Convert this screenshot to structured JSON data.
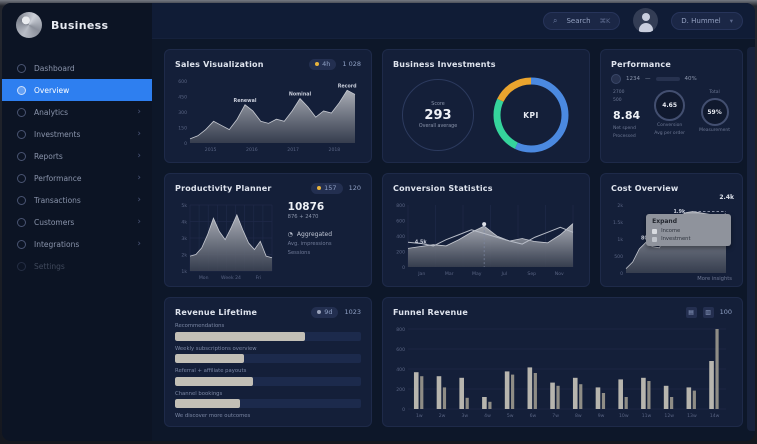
{
  "sidebar": {
    "logo_text": "Business",
    "items": [
      {
        "label": "Dashboard",
        "chevron": false,
        "active": false,
        "dim": false
      },
      {
        "label": "Overview",
        "chevron": false,
        "active": true,
        "dim": false
      },
      {
        "label": "Analytics",
        "chevron": true,
        "active": false,
        "dim": false
      },
      {
        "label": "Investments",
        "chevron": true,
        "active": false,
        "dim": false
      },
      {
        "label": "Reports",
        "chevron": true,
        "active": false,
        "dim": false
      },
      {
        "label": "Performance",
        "chevron": true,
        "active": false,
        "dim": false
      },
      {
        "label": "Transactions",
        "chevron": true,
        "active": false,
        "dim": false
      },
      {
        "label": "Customers",
        "chevron": true,
        "active": false,
        "dim": false
      },
      {
        "label": "Integrations",
        "chevron": true,
        "active": false,
        "dim": false
      },
      {
        "label": "Settings",
        "chevron": false,
        "active": false,
        "dim": true
      }
    ]
  },
  "header": {
    "search": {
      "icon": "⌕",
      "label": "Search",
      "hint": "⌘K"
    },
    "user_menu": {
      "label": "D. Hummel",
      "hint": "▾"
    }
  },
  "cards": {
    "sales": {
      "title": "Sales Visualization",
      "badge_pill": "4h",
      "badge_value": "1 028"
    },
    "investments": {
      "title": "Business Investments",
      "score": {
        "top": "Score",
        "big": "293",
        "sub": "Overall average"
      },
      "donut_center": "KPI"
    },
    "performance": {
      "title": "Performance",
      "control": {
        "label": "1234",
        "value": "40%"
      },
      "col1": {
        "line1": "2700",
        "line2": "500",
        "big": "8.84",
        "label1": "Net spend",
        "label2": "Processed"
      },
      "col2": {
        "ring": "4.65",
        "label1": "Conversion",
        "label2": "Avg per order"
      },
      "col3": {
        "top": "Total",
        "ring": "59%",
        "label1": "Measurement"
      }
    },
    "planner": {
      "title": "Productivity Planner",
      "badge1": "157",
      "badge2": "120",
      "stats": {
        "big": "10876",
        "sub": "876 + 2470",
        "agg": "Aggregated",
        "line1": "Avg. impressions",
        "line2": "Sessions"
      }
    },
    "conversion": {
      "title": "Conversion Statistics"
    },
    "cost": {
      "title": "Cost Overview",
      "peak_label": "2.4k",
      "caption": "More insights",
      "tooltip": {
        "title": "Expand",
        "row1": "Income",
        "row2": "Investment"
      }
    },
    "lifetime": {
      "title": "Revenue Lifetime",
      "badge_pill": "9d",
      "badge_value": "1023"
    },
    "funnel": {
      "title": "Funnel Revenue",
      "icon1": "▤",
      "icon2": "▥",
      "badge_value": "100"
    }
  },
  "charts": {
    "sales_area": {
      "type": "area",
      "vmax": 60,
      "values": [
        4,
        7,
        13,
        21,
        17,
        13,
        23,
        37,
        31,
        21,
        19,
        23,
        21,
        31,
        43,
        35,
        25,
        31,
        29,
        39,
        51,
        47
      ],
      "y_labels": [
        "600",
        "450",
        "300",
        "150",
        "0"
      ],
      "x_labels": [
        "2015",
        "2016",
        "2017",
        "2018"
      ],
      "annotations": [
        {
          "i": 7,
          "label": "Renewal"
        },
        {
          "i": 14,
          "label": "Nominal"
        },
        {
          "i": 20,
          "label": "Record"
        }
      ]
    },
    "invest_donut": {
      "type": "donut",
      "segments": [
        {
          "name": "primary",
          "color": "#4b89e0",
          "value": 57
        },
        {
          "name": "secondary",
          "color": "#35d49c",
          "value": 25
        },
        {
          "name": "tertiary",
          "color": "#eaa42e",
          "value": 18
        }
      ]
    },
    "planner_area": {
      "type": "area",
      "vmax": 40,
      "grid": "both",
      "vlines": 9,
      "values": [
        9,
        10,
        14,
        22,
        32,
        24,
        19,
        26,
        34,
        25,
        17,
        13,
        18,
        9,
        8
      ],
      "y_labels": [
        "5k",
        "4k",
        "3k",
        "2k",
        "1k"
      ],
      "x_labels": [
        "Mon",
        "Week 24",
        "Fri"
      ]
    },
    "conversion_chart": {
      "type": "area",
      "vmax": 100,
      "grid": "v",
      "vlines": 6,
      "marker": 6,
      "values": [
        30,
        33,
        36,
        34,
        44,
        56,
        66,
        50,
        42,
        46,
        41,
        39,
        52,
        70
      ],
      "line_values": [
        40,
        38,
        34,
        44,
        52,
        60,
        54,
        48,
        42,
        37,
        48,
        56,
        64,
        56
      ],
      "y_labels": [
        "800",
        "600",
        "400",
        "200",
        "0"
      ],
      "x_labels": [
        "Jan",
        "Mar",
        "May",
        "Jul",
        "Sep",
        "Nov"
      ],
      "annotations": [
        {
          "i": 1,
          "label": "4.5k"
        }
      ]
    },
    "cost_chart": {
      "type": "area",
      "vmax": 62,
      "hline": 56,
      "values": [
        4,
        10,
        22,
        28,
        24,
        23,
        34,
        45,
        52,
        55,
        56,
        55,
        54,
        53,
        52,
        54
      ],
      "y_labels": [
        "2k",
        "1.5k",
        "1k",
        "500",
        "0"
      ],
      "x_labels": [],
      "annotations": [
        {
          "i": 3,
          "label": "800"
        },
        {
          "i": 8,
          "label": "1.9k"
        }
      ]
    },
    "lifetime_bars": {
      "type": "hbar",
      "items": [
        {
          "label": "Recommendations",
          "value": 70
        },
        {
          "label": "Weekly subscriptions overview",
          "value": 37
        },
        {
          "label": "Referral + affiliate payouts",
          "value": 42
        },
        {
          "label": "Channel bookings",
          "value": 35
        }
      ],
      "caption": "We discover more outcomes"
    },
    "funnel_bars": {
      "type": "bars",
      "vmax": 100,
      "grid": "h",
      "y_labels": [
        "800",
        "600",
        "400",
        "200",
        "0"
      ],
      "x_labels": [
        "1w",
        "2w",
        "3w",
        "4w",
        "5w",
        "6w",
        "7w",
        "8w",
        "9w",
        "10w",
        "11w",
        "12w",
        "13w",
        "14w"
      ],
      "series": [
        {
          "name": "current",
          "values": [
            46,
            41,
            39,
            15,
            47,
            52,
            33,
            39,
            27,
            37,
            39,
            29,
            27,
            60
          ]
        },
        {
          "name": "previous",
          "values": [
            41,
            27,
            14,
            9,
            43,
            45,
            29,
            31,
            20,
            15,
            35,
            15,
            23,
            100
          ]
        }
      ]
    }
  },
  "colors": {
    "accent_blue": "#2e7ff0",
    "donut_blue": "#4b89e0",
    "donut_green": "#35d49c",
    "donut_yellow": "#eaa42e",
    "bar_gray": "#b7b5ae",
    "badge_dot_yellow": "#e8b33c"
  }
}
